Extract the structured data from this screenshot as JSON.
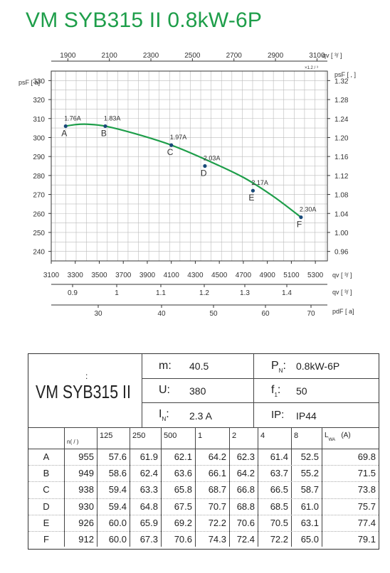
{
  "title": "VM SYB315 II 0.8kW-6P",
  "chart_data": {
    "type": "line",
    "x_top_axis": {
      "unit_label": "qv [ ³/ ]",
      "sub_unit": "×1.2 / ³",
      "ticks": [
        1900,
        2100,
        2300,
        2500,
        2700,
        2900,
        3100
      ],
      "range": [
        1820,
        3150
      ]
    },
    "x_bottom_axis": {
      "unit_label": "qv [ ³/ ]",
      "ticks": [
        3100,
        3300,
        3500,
        3700,
        3900,
        4100,
        4300,
        4500,
        4700,
        4900,
        5100,
        5300
      ],
      "range": [
        3100,
        5400
      ]
    },
    "x_bottom_axis2": {
      "unit_label": "qv [ ³/ ]",
      "ticks": [
        "0.9",
        "1",
        "1.1",
        "1.2",
        "1.3",
        "1.4"
      ]
    },
    "x_bottom_axis3": {
      "unit_label": "pdF [ a]",
      "ticks": [
        "30",
        "40",
        "50",
        "60",
        "70"
      ]
    },
    "y_left_axis": {
      "unit_label": "psF [ a]",
      "ticks": [
        240,
        250,
        260,
        270,
        280,
        290,
        300,
        310,
        320,
        330
      ],
      "range": [
        235,
        335
      ]
    },
    "y_right_axis": {
      "unit_label": "psF [ , ]",
      "ticks": [
        "0.96",
        "1.00",
        "1.04",
        "1.08",
        "1.12",
        "1.16",
        "1.20",
        "1.24",
        "1.28",
        "1.32"
      ]
    },
    "curve": [
      [
        3220,
        306
      ],
      [
        3300,
        306.8
      ],
      [
        3400,
        307
      ],
      [
        3550,
        306
      ],
      [
        3800,
        302
      ],
      [
        4100,
        296
      ],
      [
        4400,
        288
      ],
      [
        4700,
        279
      ],
      [
        4950,
        269
      ],
      [
        5180,
        258
      ]
    ],
    "points": [
      {
        "name": "A",
        "x": 3220,
        "y": 306,
        "current": "1.76A"
      },
      {
        "name": "B",
        "x": 3550,
        "y": 306,
        "current": "1.83A"
      },
      {
        "name": "C",
        "x": 4100,
        "y": 296,
        "current": "1.97A"
      },
      {
        "name": "D",
        "x": 4380,
        "y": 285,
        "current": "2.03A"
      },
      {
        "name": "E",
        "x": 4780,
        "y": 272,
        "current": "2.17A"
      },
      {
        "name": "F",
        "x": 5180,
        "y": 258,
        "current": "2.30A"
      }
    ],
    "grid": true,
    "series_color": "#1e9e4a"
  },
  "spec": {
    "model": "VM SYB315 II",
    "colon": ":",
    "m_label": "m:",
    "m_value": "40.5",
    "pn_label": "P",
    "pn_sub": "N",
    "pn_colon": ":",
    "pn_value": "0.8kW-6P",
    "u_label": "U:",
    "u_value": "380",
    "f_label": "f",
    "f_sub": "1",
    "f_colon": ":",
    "f_value": "50",
    "in_label": "I",
    "in_sub": "N",
    "in_colon": ":",
    "in_value": "2.3  A",
    "ip_label": "IP:",
    "ip_value": "IP44"
  },
  "table": {
    "rpm_header": "n( / )",
    "band_headers": [
      "125",
      "250",
      "500",
      "1",
      "2",
      "4",
      "8"
    ],
    "lwa_header": "L",
    "lwa_sub": "WA",
    "lwa_unit": "(A)",
    "rows": [
      {
        "label": "A",
        "values": [
          "955",
          "57.6",
          "61.9",
          "62.1",
          "64.2",
          "62.3",
          "61.4",
          "52.5",
          "69.8"
        ]
      },
      {
        "label": "B",
        "values": [
          "949",
          "58.6",
          "62.4",
          "63.6",
          "66.1",
          "64.2",
          "63.7",
          "55.2",
          "71.5"
        ]
      },
      {
        "label": "C",
        "values": [
          "938",
          "59.4",
          "63.3",
          "65.8",
          "68.7",
          "66.8",
          "66.5",
          "58.7",
          "73.8"
        ]
      },
      {
        "label": "D",
        "values": [
          "930",
          "59.4",
          "64.8",
          "67.5",
          "70.7",
          "68.8",
          "68.5",
          "61.0",
          "75.7"
        ]
      },
      {
        "label": "E",
        "values": [
          "926",
          "60.0",
          "65.9",
          "69.2",
          "72.2",
          "70.6",
          "70.5",
          "63.1",
          "77.4"
        ]
      },
      {
        "label": "F",
        "values": [
          "912",
          "60.0",
          "67.3",
          "70.6",
          "74.3",
          "72.4",
          "72.2",
          "65.0",
          "79.1"
        ]
      }
    ]
  }
}
